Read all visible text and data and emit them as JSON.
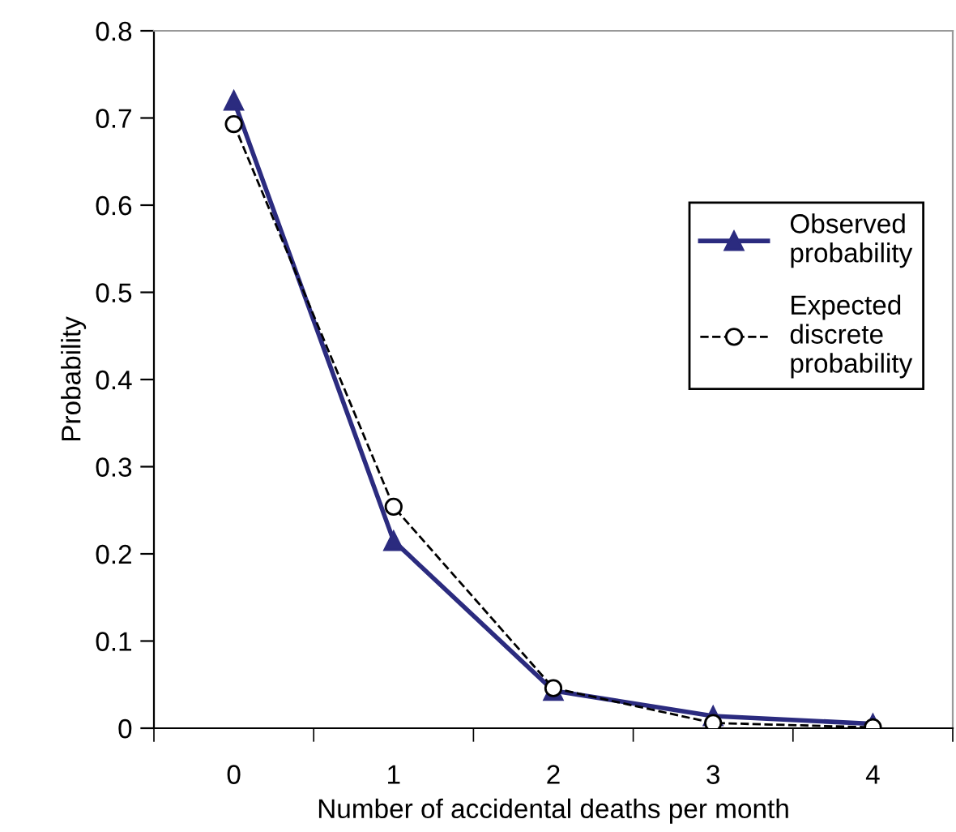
{
  "chart_data": {
    "type": "line",
    "xlabel": "Number of accidental deaths per month",
    "ylabel": "Probability",
    "categories": [
      "0",
      "1",
      "2",
      "3",
      "4"
    ],
    "series": [
      {
        "name": "Observed\nprobability",
        "color": "#2b2b7f",
        "marker": "triangle",
        "line_style": "solid",
        "values": [
          0.72,
          0.215,
          0.043,
          0.014,
          0.005
        ]
      },
      {
        "name": "Expected\ndiscrete\nprobability",
        "color": "#000000",
        "marker": "circle",
        "line_style": "dashed",
        "values": [
          0.693,
          0.254,
          0.046,
          0.006,
          0.001
        ]
      }
    ],
    "ylim": [
      0,
      0.8
    ],
    "yticks": [
      0,
      0.1,
      0.2,
      0.3,
      0.4,
      0.5,
      0.6,
      0.7,
      0.8
    ],
    "grid": false,
    "legend": "right"
  }
}
